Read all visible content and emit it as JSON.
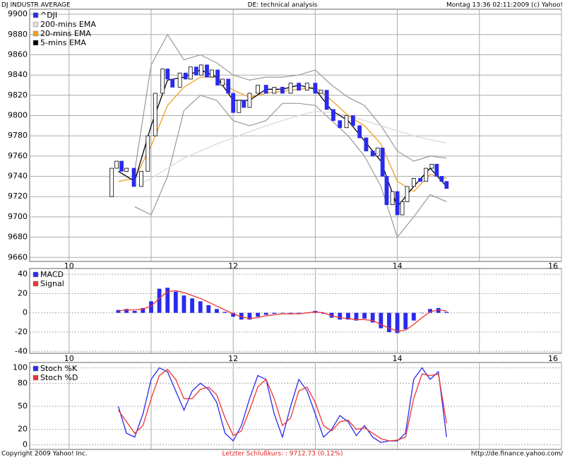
{
  "header": {
    "left": "DJ INDUSTR AVERAGE",
    "center": "DE: technical analysis",
    "right": "Montag 13:36 02:11:2009 (c) Yahoo!"
  },
  "footer": {
    "left": "Copyright 2009 Yahoo! Inc.",
    "center": "Letzter Schlußkurs: : 9712.73 (0.12%)",
    "right": "http://de.finance.yahoo.com/"
  },
  "chart_data": [
    {
      "type": "candlestick",
      "name": "^DJI",
      "color_up": "#ffffff",
      "color_down": "#2a2aee",
      "x": [
        10.52,
        10.58,
        10.64,
        10.7,
        10.79,
        10.88,
        10.96,
        11.05,
        11.14,
        11.2,
        11.26,
        11.35,
        11.42,
        11.48,
        11.55,
        11.61,
        11.68,
        11.74,
        11.81,
        11.87,
        11.94,
        12.0,
        12.07,
        12.13,
        12.2,
        12.3,
        12.4,
        12.5,
        12.6,
        12.7,
        12.8,
        12.9,
        13.0,
        13.07,
        13.14,
        13.22,
        13.3,
        13.38,
        13.46,
        13.54,
        13.62,
        13.7,
        13.76,
        13.82,
        13.87,
        13.94,
        14.0,
        14.06,
        14.12,
        14.2,
        14.28,
        14.35,
        14.42,
        14.48,
        14.54,
        14.6
      ],
      "open": [
        9720,
        9748,
        9755,
        9745,
        9748,
        9730,
        9745,
        9780,
        9822,
        9846,
        9836,
        9828,
        9842,
        9836,
        9848,
        9840,
        9850,
        9838,
        9845,
        9830,
        9836,
        9822,
        9803,
        9815,
        9808,
        9822,
        9830,
        9822,
        9828,
        9822,
        9832,
        9825,
        9832,
        9822,
        9825,
        9806,
        9795,
        9788,
        9800,
        9790,
        9778,
        9765,
        9760,
        9768,
        9740,
        9712,
        9725,
        9702,
        9715,
        9730,
        9738,
        9735,
        9748,
        9752,
        9740,
        9735
      ],
      "close": [
        9748,
        9755,
        9745,
        9748,
        9730,
        9745,
        9780,
        9822,
        9846,
        9836,
        9828,
        9842,
        9836,
        9848,
        9840,
        9850,
        9838,
        9845,
        9830,
        9836,
        9822,
        9803,
        9815,
        9808,
        9822,
        9830,
        9822,
        9828,
        9822,
        9832,
        9825,
        9832,
        9822,
        9825,
        9806,
        9795,
        9788,
        9800,
        9790,
        9778,
        9765,
        9760,
        9768,
        9740,
        9712,
        9725,
        9702,
        9715,
        9730,
        9738,
        9735,
        9748,
        9752,
        9740,
        9735,
        9728
      ],
      "series": [
        {
          "name": "200-mins EMA",
          "color": "#dddddd",
          "x": [
            10.6,
            10.8,
            11.0,
            11.2,
            11.4,
            11.6,
            11.8,
            12.0,
            12.2,
            12.4,
            12.6,
            12.8,
            13.0,
            13.2,
            13.4,
            13.6,
            13.8,
            14.0,
            14.2,
            14.4,
            14.6
          ],
          "values": [
            null,
            9730,
            9738,
            9748,
            9758,
            9765,
            9772,
            9778,
            9784,
            9790,
            9795,
            9800,
            9804,
            9803,
            9800,
            9795,
            9790,
            9785,
            9780,
            9776,
            9773
          ]
        },
        {
          "name": "20-mins EMA",
          "color": "#f0a020",
          "x": [
            10.6,
            10.8,
            11.0,
            11.2,
            11.4,
            11.6,
            11.8,
            12.0,
            12.2,
            12.4,
            12.6,
            12.8,
            13.0,
            13.2,
            13.4,
            13.6,
            13.8,
            14.0,
            14.2,
            14.4,
            14.6
          ],
          "values": [
            9735,
            9738,
            9770,
            9810,
            9828,
            9838,
            9838,
            9825,
            9818,
            9822,
            9824,
            9826,
            9828,
            9815,
            9800,
            9790,
            9772,
            9735,
            9725,
            9742,
            9738
          ]
        },
        {
          "name": "5-mins EMA",
          "color": "#000000",
          "x": [
            10.6,
            10.8,
            11.0,
            11.2,
            11.4,
            11.6,
            11.8,
            12.0,
            12.2,
            12.4,
            12.6,
            12.8,
            13.0,
            13.2,
            13.4,
            13.6,
            13.8,
            14.0,
            14.2,
            14.4,
            14.6
          ],
          "values": [
            9745,
            9735,
            9790,
            9835,
            9838,
            9845,
            9838,
            9815,
            9815,
            9826,
            9826,
            9830,
            9826,
            9805,
            9795,
            9775,
            9755,
            9710,
            9730,
            9748,
            9730
          ]
        }
      ],
      "bands": {
        "color": "#999999",
        "x": [
          10.6,
          10.8,
          11.0,
          11.2,
          11.4,
          11.6,
          11.8,
          12.0,
          12.2,
          12.4,
          12.6,
          12.8,
          13.0,
          13.2,
          13.4,
          13.6,
          13.8,
          14.0,
          14.2,
          14.4,
          14.6
        ],
        "upper": [
          null,
          9745,
          9850,
          9880,
          9855,
          9860,
          9852,
          9840,
          9835,
          9838,
          9838,
          9840,
          9845,
          9830,
          9818,
          9810,
          9790,
          9765,
          9755,
          9760,
          9758
        ],
        "lower": [
          null,
          9710,
          9702,
          9740,
          9805,
          9820,
          9815,
          9795,
          9790,
          9795,
          9812,
          9812,
          9810,
          9795,
          9780,
          9760,
          9730,
          9680,
          9700,
          9722,
          9715
        ]
      },
      "xlim": [
        9.52,
        16.0
      ],
      "xticks": [
        10,
        12,
        14,
        16
      ],
      "minor_xticks": [
        11,
        13,
        15
      ],
      "ylim": [
        9656,
        9905
      ],
      "yticks": [
        9660,
        9680,
        9700,
        9720,
        9740,
        9760,
        9780,
        9800,
        9820,
        9840,
        9860,
        9880,
        9900
      ],
      "grid": true
    },
    {
      "type": "macd",
      "x": [
        10.6,
        10.7,
        10.8,
        10.9,
        11.0,
        11.1,
        11.2,
        11.3,
        11.4,
        11.5,
        11.6,
        11.7,
        11.8,
        11.9,
        12.0,
        12.1,
        12.2,
        12.3,
        12.4,
        12.5,
        12.6,
        12.7,
        12.8,
        12.9,
        13.0,
        13.1,
        13.2,
        13.3,
        13.4,
        13.5,
        13.6,
        13.7,
        13.8,
        13.9,
        14.0,
        14.1,
        14.2,
        14.3,
        14.4,
        14.5,
        14.6
      ],
      "series": [
        {
          "name": "MACD",
          "color": "#2a2aee",
          "style": "bar",
          "values": [
            3,
            4,
            2,
            5,
            12,
            25,
            26,
            22,
            18,
            15,
            12,
            8,
            4,
            1,
            -4,
            -7,
            -7,
            -4,
            -2,
            -1,
            0,
            -1,
            -1,
            0,
            2,
            -1,
            -5,
            -7,
            -7,
            -8,
            -6,
            -10,
            -16,
            -20,
            -21,
            -17,
            -8,
            0,
            4,
            5,
            1
          ]
        },
        {
          "name": "Signal",
          "color": "#ee3333",
          "style": "line",
          "values": [
            2,
            3,
            3,
            4,
            7,
            15,
            22,
            23,
            21,
            18,
            15,
            11,
            7,
            3,
            -1,
            -4,
            -6,
            -5,
            -3,
            -2,
            -1,
            -1,
            -1,
            0,
            1,
            0,
            -3,
            -5,
            -6,
            -7,
            -7,
            -8,
            -12,
            -16,
            -19,
            -18,
            -12,
            -5,
            1,
            3,
            2
          ]
        }
      ],
      "xlim": [
        9.52,
        16.0
      ],
      "xticks": [
        10,
        12,
        14,
        16
      ],
      "minor_xticks": [
        11,
        13,
        15
      ],
      "ylim": [
        -42,
        46
      ],
      "yticks": [
        -40,
        -20,
        0,
        20,
        40
      ],
      "grid": true
    },
    {
      "type": "stochastic",
      "x": [
        10.6,
        10.7,
        10.8,
        10.9,
        11.0,
        11.1,
        11.2,
        11.3,
        11.4,
        11.5,
        11.6,
        11.7,
        11.8,
        11.9,
        12.0,
        12.1,
        12.2,
        12.3,
        12.4,
        12.5,
        12.6,
        12.7,
        12.8,
        12.9,
        13.0,
        13.1,
        13.2,
        13.3,
        13.4,
        13.5,
        13.6,
        13.7,
        13.8,
        13.9,
        14.0,
        14.1,
        14.2,
        14.3,
        14.4,
        14.5,
        14.6
      ],
      "series": [
        {
          "name": "Stoch %K",
          "color": "#2a2aee",
          "style": "line",
          "values": [
            50,
            15,
            10,
            40,
            85,
            100,
            95,
            70,
            45,
            70,
            80,
            72,
            55,
            15,
            5,
            25,
            60,
            90,
            85,
            40,
            10,
            50,
            85,
            70,
            40,
            10,
            20,
            38,
            30,
            12,
            25,
            10,
            3,
            5,
            5,
            15,
            85,
            100,
            85,
            95,
            10
          ]
        },
        {
          "name": "Stoch %D",
          "color": "#ee3333",
          "style": "line",
          "values": [
            45,
            30,
            15,
            25,
            60,
            90,
            98,
            85,
            60,
            60,
            72,
            75,
            65,
            35,
            12,
            18,
            45,
            75,
            85,
            60,
            25,
            35,
            70,
            75,
            55,
            25,
            18,
            30,
            32,
            20,
            22,
            15,
            8,
            5,
            6,
            10,
            60,
            92,
            90,
            92,
            28
          ]
        }
      ],
      "xlim": [
        9.52,
        16.0
      ],
      "xticks": [
        10,
        12,
        14,
        16
      ],
      "minor_xticks": [
        11,
        13,
        15
      ],
      "ylim": [
        -6,
        107
      ],
      "yticks": [
        0,
        20,
        50,
        80,
        100
      ],
      "grid": true
    }
  ]
}
